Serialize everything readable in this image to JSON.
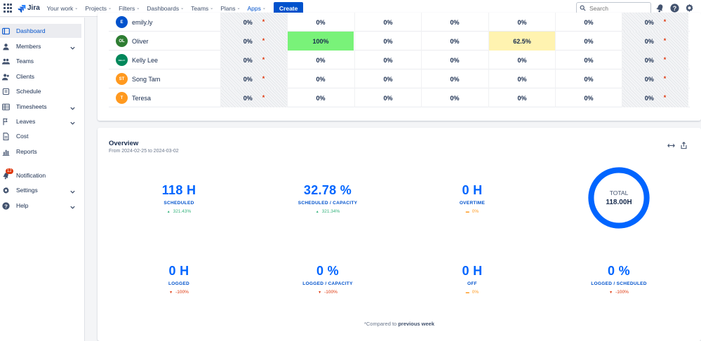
{
  "app": {
    "name": "Jira",
    "brand_color": "#0052cc"
  },
  "nav": {
    "items": [
      {
        "label": "Your work",
        "chevron": true,
        "active": false
      },
      {
        "label": "Projects",
        "chevron": true,
        "active": false
      },
      {
        "label": "Filters",
        "chevron": true,
        "active": false
      },
      {
        "label": "Dashboards",
        "chevron": true,
        "active": false
      },
      {
        "label": "Teams",
        "chevron": true,
        "active": false
      },
      {
        "label": "Plans",
        "chevron": true,
        "active": false
      },
      {
        "label": "Apps",
        "chevron": true,
        "active": true
      }
    ],
    "create_label": "Create",
    "search_placeholder": "Search"
  },
  "sidebar": {
    "items": [
      {
        "label": "Dashboard",
        "icon": "dashboard-icon",
        "active": true,
        "chevron": false
      },
      {
        "label": "Members",
        "icon": "user-icon",
        "active": false,
        "chevron": true
      },
      {
        "label": "Teams",
        "icon": "team-icon",
        "active": false,
        "chevron": false
      },
      {
        "label": "Clients",
        "icon": "clients-icon",
        "active": false,
        "chevron": false
      },
      {
        "label": "Schedule",
        "icon": "schedule-icon",
        "active": false,
        "chevron": false
      },
      {
        "label": "Timesheets",
        "icon": "table-icon",
        "active": false,
        "chevron": true
      },
      {
        "label": "Leaves",
        "icon": "flag-icon",
        "active": false,
        "chevron": true
      },
      {
        "label": "Cost",
        "icon": "document-icon",
        "active": false,
        "chevron": false
      },
      {
        "label": "Reports",
        "icon": "bar-chart-icon",
        "active": false,
        "chevron": false
      },
      {
        "label": "Notification",
        "icon": "bell-icon",
        "active": false,
        "chevron": false,
        "badge": "12"
      },
      {
        "label": "Settings",
        "icon": "gear-icon",
        "active": false,
        "chevron": true
      },
      {
        "label": "Help",
        "icon": "help-icon",
        "active": false,
        "chevron": true
      }
    ]
  },
  "members_table": {
    "rows": [
      {
        "name": "emily.ly",
        "avatar_text": "E",
        "avatar_color": "#0052cc",
        "cells": [
          {
            "v": "0%",
            "star": true,
            "style": "hatch"
          },
          {
            "v": "0%",
            "style": ""
          },
          {
            "v": "0%",
            "style": ""
          },
          {
            "v": "0%",
            "style": ""
          },
          {
            "v": "0%",
            "style": ""
          },
          {
            "v": "0%",
            "style": ""
          },
          {
            "v": "0%",
            "star": true,
            "style": "hatch"
          }
        ]
      },
      {
        "name": "Oliver",
        "avatar_text": "OL",
        "avatar_color": "#2e7d32",
        "cells": [
          {
            "v": "0%",
            "star": true,
            "style": "hatch"
          },
          {
            "v": "100%",
            "style": "green"
          },
          {
            "v": "0%",
            "style": ""
          },
          {
            "v": "0%",
            "style": ""
          },
          {
            "v": "62.5%",
            "style": "yellow"
          },
          {
            "v": "0%",
            "style": ""
          },
          {
            "v": "0%",
            "star": true,
            "style": "hatch"
          }
        ]
      },
      {
        "name": "Kelly Lee",
        "avatar_text": "KELLY",
        "avatar_color": "#00875a",
        "cells": [
          {
            "v": "0%",
            "star": true,
            "style": "hatch"
          },
          {
            "v": "0%",
            "style": ""
          },
          {
            "v": "0%",
            "style": ""
          },
          {
            "v": "0%",
            "style": ""
          },
          {
            "v": "0%",
            "style": ""
          },
          {
            "v": "0%",
            "style": ""
          },
          {
            "v": "0%",
            "star": true,
            "style": "hatch"
          }
        ]
      },
      {
        "name": "Song Tam",
        "avatar_text": "ST",
        "avatar_color": "#ff991f",
        "cells": [
          {
            "v": "0%",
            "star": true,
            "style": "hatch"
          },
          {
            "v": "0%",
            "style": ""
          },
          {
            "v": "0%",
            "style": ""
          },
          {
            "v": "0%",
            "style": ""
          },
          {
            "v": "0%",
            "style": ""
          },
          {
            "v": "0%",
            "style": ""
          },
          {
            "v": "0%",
            "star": true,
            "style": "hatch"
          }
        ]
      },
      {
        "name": "Teresa",
        "avatar_text": "T",
        "avatar_color": "#ff991f",
        "cells": [
          {
            "v": "0%",
            "star": true,
            "style": "hatch"
          },
          {
            "v": "0%",
            "style": ""
          },
          {
            "v": "0%",
            "style": ""
          },
          {
            "v": "0%",
            "style": ""
          },
          {
            "v": "0%",
            "style": ""
          },
          {
            "v": "0%",
            "style": ""
          },
          {
            "v": "0%",
            "star": true,
            "style": "hatch"
          }
        ]
      }
    ]
  },
  "overview": {
    "title": "Overview",
    "date_range": "From 2024-02-25 to 2024-03-02",
    "stats": [
      {
        "value": "118 H",
        "label": "SCHEDULED",
        "change": "321.43%",
        "trend": "up"
      },
      {
        "value": "32.78 %",
        "label": "SCHEDULED / CAPACITY",
        "change": "321.34%",
        "trend": "up"
      },
      {
        "value": "0 H",
        "label": "OVERTIME",
        "change": "0%",
        "trend": "flat"
      },
      {
        "value": "0 H",
        "label": "LOGGED",
        "change": "-100%",
        "trend": "down"
      },
      {
        "value": "0 %",
        "label": "LOGGED / CAPACITY",
        "change": "-100%",
        "trend": "down"
      },
      {
        "value": "0 H",
        "label": "OFF",
        "change": "0%",
        "trend": "flat"
      },
      {
        "value": "0 %",
        "label": "LOGGED / SCHEDULED",
        "change": "-100%",
        "trend": "down"
      }
    ],
    "total": {
      "label": "TOTAL",
      "value": "118.00H",
      "fill_fraction": 1.0,
      "color": "#0065ff"
    },
    "footnote_prefix": "*Compared to",
    "footnote_emphasis": "previous week"
  }
}
